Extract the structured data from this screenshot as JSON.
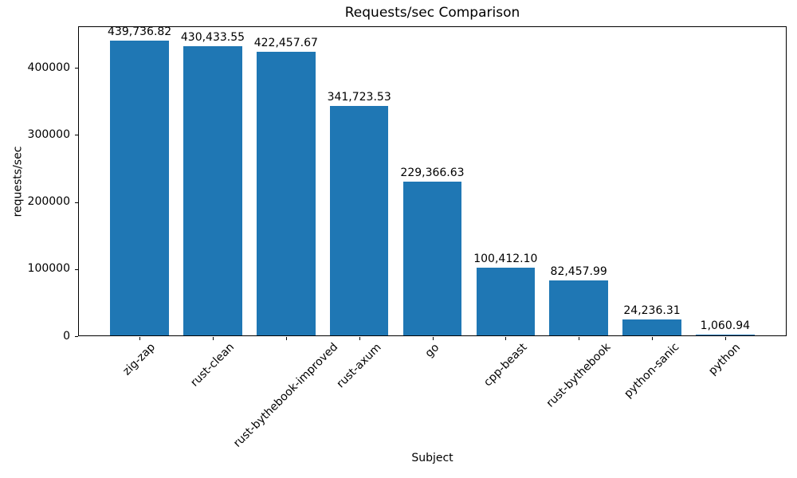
{
  "chart_data": {
    "type": "bar",
    "title": "Requests/sec Comparison",
    "xlabel": "Subject",
    "ylabel": "requests/sec",
    "categories": [
      "zig-zap",
      "rust-clean",
      "rust-bythebook-improved",
      "rust-axum",
      "go",
      "cpp-beast",
      "rust-bythebook",
      "python-sanic",
      "python"
    ],
    "values": [
      439736.82,
      430433.55,
      422457.67,
      341723.53,
      229366.63,
      100412.1,
      82457.99,
      24236.31,
      1060.94
    ],
    "value_labels": [
      "439,736.82",
      "430,433.55",
      "422,457.67",
      "341,723.53",
      "229,366.63",
      "100,412.10",
      "82,457.99",
      "24,236.31",
      "1,060.94"
    ],
    "yticks": [
      0,
      100000,
      200000,
      300000,
      400000
    ],
    "ytick_labels": [
      "0",
      "100000",
      "200000",
      "300000",
      "400000"
    ],
    "ylim": [
      0,
      461723.66
    ],
    "x_tick_rotation": 45,
    "grid": false,
    "legend": null,
    "bar_color": "#1f77b4",
    "text_color": "#000000",
    "background_color": "#ffffff"
  }
}
